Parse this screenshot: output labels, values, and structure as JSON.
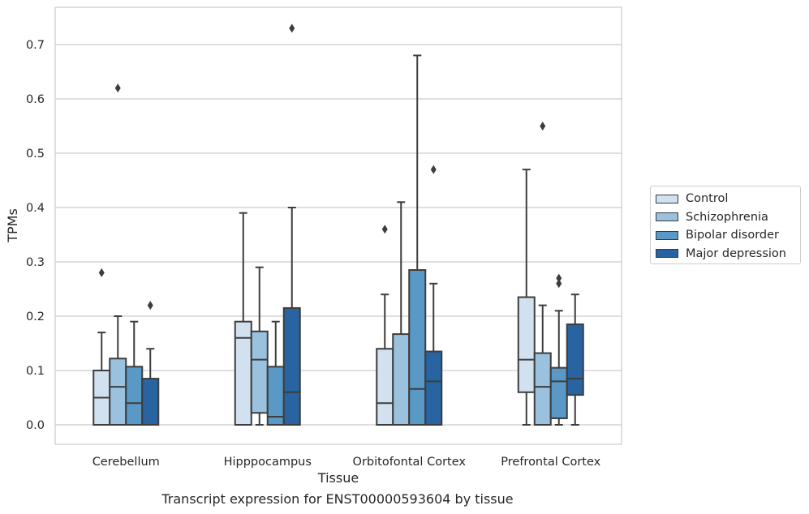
{
  "chart_data": {
    "type": "box",
    "xlabel": "Tissue",
    "ylabel": "TPMs",
    "ylim": [
      -0.036,
      0.767
    ],
    "yticks": [
      0.0,
      0.1,
      0.2,
      0.3,
      0.4,
      0.5,
      0.6,
      0.7
    ],
    "ytick_labels": [
      "0.0",
      "0.1",
      "0.2",
      "0.3",
      "0.4",
      "0.5",
      "0.6",
      "0.7"
    ],
    "categories": [
      "Cerebellum",
      "Hipppocampus",
      "Orbitofontal Cortex",
      "Prefrontal Cortex"
    ],
    "grid": "horizontal",
    "legend_position": "right",
    "series": [
      {
        "name": "Control",
        "color": "#d1e1f0",
        "boxes": [
          {
            "min": 0.0,
            "q1": 0.0,
            "median": 0.05,
            "q3": 0.1,
            "max": 0.17,
            "outliers": [
              0.28
            ]
          },
          {
            "min": 0.0,
            "q1": 0.0,
            "median": 0.16,
            "q3": 0.19,
            "max": 0.39,
            "outliers": []
          },
          {
            "min": 0.0,
            "q1": 0.0,
            "median": 0.04,
            "q3": 0.14,
            "max": 0.24,
            "outliers": [
              0.36
            ]
          },
          {
            "min": 0.0,
            "q1": 0.06,
            "median": 0.12,
            "q3": 0.235,
            "max": 0.47,
            "outliers": []
          }
        ]
      },
      {
        "name": "Schizophrenia",
        "color": "#9ac2de",
        "boxes": [
          {
            "min": 0.0,
            "q1": 0.0,
            "median": 0.07,
            "q3": 0.122,
            "max": 0.2,
            "outliers": [
              0.62
            ]
          },
          {
            "min": 0.0,
            "q1": 0.022,
            "median": 0.12,
            "q3": 0.172,
            "max": 0.29,
            "outliers": []
          },
          {
            "min": 0.0,
            "q1": 0.0,
            "median": 0.0,
            "q3": 0.167,
            "max": 0.41,
            "outliers": []
          },
          {
            "min": 0.0,
            "q1": 0.0,
            "median": 0.07,
            "q3": 0.132,
            "max": 0.22,
            "outliers": [
              0.55
            ]
          }
        ]
      },
      {
        "name": "Bipolar disorder",
        "color": "#5a98c6",
        "boxes": [
          {
            "min": 0.0,
            "q1": 0.0,
            "median": 0.04,
            "q3": 0.107,
            "max": 0.19,
            "outliers": []
          },
          {
            "min": 0.0,
            "q1": 0.0,
            "median": 0.015,
            "q3": 0.107,
            "max": 0.19,
            "outliers": []
          },
          {
            "min": 0.0,
            "q1": 0.0,
            "median": 0.066,
            "q3": 0.285,
            "max": 0.68,
            "outliers": []
          },
          {
            "min": 0.0,
            "q1": 0.012,
            "median": 0.08,
            "q3": 0.105,
            "max": 0.21,
            "outliers": [
              0.26,
              0.27
            ]
          }
        ]
      },
      {
        "name": "Major depression",
        "color": "#2764a1",
        "boxes": [
          {
            "min": 0.0,
            "q1": 0.0,
            "median": 0.0,
            "q3": 0.085,
            "max": 0.14,
            "outliers": [
              0.22
            ]
          },
          {
            "min": 0.0,
            "q1": 0.0,
            "median": 0.06,
            "q3": 0.215,
            "max": 0.4,
            "outliers": [
              0.73
            ]
          },
          {
            "min": 0.0,
            "q1": 0.0,
            "median": 0.08,
            "q3": 0.135,
            "max": 0.26,
            "outliers": [
              0.47
            ]
          },
          {
            "min": 0.0,
            "q1": 0.055,
            "median": 0.085,
            "q3": 0.185,
            "max": 0.24,
            "outliers": []
          }
        ]
      }
    ],
    "caption": "Transcript expression for ENST00000593604 by tissue"
  }
}
